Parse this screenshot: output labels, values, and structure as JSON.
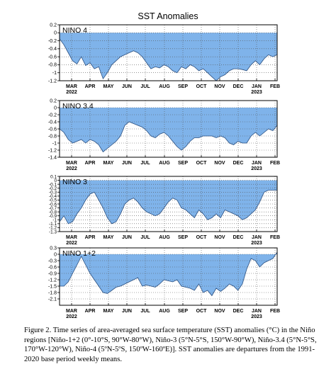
{
  "title": "SST Anomalies",
  "months": [
    "MAR",
    "APR",
    "MAY",
    "JUN",
    "JUL",
    "AUG",
    "SEP",
    "OCT",
    "NOV",
    "DEC",
    "JAN",
    "FEB"
  ],
  "year_labels": [
    {
      "month": "MAR",
      "text": "2022"
    },
    {
      "month": "JAN",
      "text": "2023"
    }
  ],
  "caption": "Figure 2. Time series of area-averaged sea surface temperature (SST) anomalies (°C) in the Niño regions [Niño-1+2 (0°-10°S, 90°W-80°W), Niño-3 (5°N-5°S, 150°W-90°W), Niño-3.4 (5°N-5°S, 170°W-120°W), Niño-4 (5ºN-5ºS, 150ºW-160ºE)]. SST anomalies are departures from the 1991-2020 base period weekly means.",
  "colors": {
    "fill": "#7fb3ea",
    "line": "#000000",
    "grid": "#555555"
  },
  "chart_data": [
    {
      "type": "area",
      "title": "NINO 4",
      "ylim": [
        -1.2,
        0.2
      ],
      "yticks": [
        0.2,
        0,
        -0.2,
        -0.4,
        -0.6,
        -0.8,
        -1,
        -1.2
      ],
      "ytick_labels": [
        "0.2",
        "0",
        "-0.2",
        "-0.4",
        "-0.6",
        "-0.8",
        "-1",
        "-1.2"
      ],
      "xlim": [
        0,
        50
      ],
      "grid": true,
      "values": [
        -0.15,
        -0.3,
        -0.5,
        -0.7,
        -0.78,
        -0.6,
        -0.82,
        -0.75,
        -0.9,
        -0.85,
        -1.15,
        -1.0,
        -0.8,
        -0.7,
        -0.6,
        -0.55,
        -0.5,
        -0.45,
        -0.5,
        -0.6,
        -0.75,
        -0.9,
        -0.85,
        -0.88,
        -0.8,
        -0.85,
        -0.95,
        -1.0,
        -0.85,
        -0.9,
        -0.8,
        -0.85,
        -0.95,
        -0.9,
        -1.0,
        -1.1,
        -1.2,
        -1.1,
        -1.05,
        -0.95,
        -0.9,
        -0.9,
        -0.92,
        -0.95,
        -0.8,
        -0.7,
        -0.8,
        -0.65,
        -0.55,
        -0.6,
        -0.55
      ]
    },
    {
      "type": "area",
      "title": "NINO 3.4",
      "ylim": [
        -1.4,
        0.2
      ],
      "yticks": [
        0.2,
        0,
        -0.2,
        -0.4,
        -0.6,
        -0.8,
        -1,
        -1.2,
        -1.4
      ],
      "ytick_labels": [
        "0.2",
        "0",
        "-0.2",
        "-0.4",
        "-0.6",
        "-0.8",
        "-1",
        "-1.2",
        "-1.4"
      ],
      "xlim": [
        0,
        50
      ],
      "grid": true,
      "values": [
        -0.6,
        -0.7,
        -0.9,
        -1.0,
        -0.95,
        -0.9,
        -1.0,
        -0.9,
        -0.95,
        -1.05,
        -1.25,
        -1.15,
        -1.05,
        -0.95,
        -0.8,
        -0.5,
        -0.4,
        -0.45,
        -0.5,
        -0.55,
        -0.65,
        -0.8,
        -0.85,
        -0.75,
        -0.7,
        -0.8,
        -0.95,
        -1.1,
        -1.2,
        -1.1,
        -0.95,
        -0.85,
        -0.85,
        -0.8,
        -0.8,
        -0.8,
        -0.85,
        -0.8,
        -0.85,
        -1.0,
        -1.05,
        -0.95,
        -1.0,
        -1.0,
        -0.8,
        -0.7,
        -0.8,
        -0.7,
        -0.6,
        -0.65,
        -0.5
      ]
    },
    {
      "type": "area",
      "title": "NINO 3",
      "ylim": [
        -1.3,
        0.1
      ],
      "yticks": [
        0.1,
        0,
        -0.1,
        -0.2,
        -0.3,
        -0.4,
        -0.5,
        -0.6,
        -0.7,
        -0.8,
        -0.9,
        -1,
        -1.1,
        -1.2,
        -1.3
      ],
      "ytick_labels": [
        "0.1",
        "0",
        "-0.1",
        "-0.2",
        "-0.3",
        "-0.4",
        "-0.5",
        "-0.6",
        "-0.7",
        "-0.8",
        "-0.9",
        "-1",
        "-1.1",
        "-1.2",
        "-1.3"
      ],
      "xlim": [
        0,
        50
      ],
      "grid": true,
      "values": [
        -1.05,
        -0.9,
        -1.1,
        -1.05,
        -0.85,
        -0.7,
        -0.5,
        -0.35,
        -0.3,
        -0.5,
        -0.7,
        -0.95,
        -1.1,
        -1.05,
        -0.85,
        -0.6,
        -0.5,
        -0.45,
        -0.55,
        -0.7,
        -0.8,
        -0.85,
        -0.9,
        -0.85,
        -0.7,
        -0.55,
        -0.45,
        -0.5,
        -0.7,
        -0.75,
        -0.85,
        -0.95,
        -0.75,
        -0.85,
        -1.0,
        -0.95,
        -0.85,
        -0.95,
        -0.75,
        -0.8,
        -0.85,
        -0.9,
        -1.0,
        -0.95,
        -0.85,
        -0.75,
        -0.55,
        -0.3,
        -0.25,
        -0.25,
        -0.25
      ]
    },
    {
      "type": "area",
      "title": "NINO 1+2",
      "ylim": [
        -2.4,
        0.3
      ],
      "yticks": [
        0.3,
        0,
        -0.3,
        -0.6,
        -0.9,
        -1.2,
        -1.5,
        -1.8,
        -2.1
      ],
      "ytick_labels": [
        "0.3",
        "0",
        "-0.3",
        "-0.6",
        "-0.9",
        "-1.2",
        "-1.5",
        "-1.8",
        "-2.1"
      ],
      "xlim": [
        0,
        50
      ],
      "grid": true,
      "values": [
        -1.5,
        -1.5,
        -1.3,
        -0.9,
        -0.5,
        -0.1,
        -0.5,
        -0.9,
        -1.2,
        -1.5,
        -1.8,
        -1.85,
        -1.7,
        -1.55,
        -1.5,
        -1.4,
        -1.3,
        -1.2,
        -1.1,
        -1.5,
        -1.45,
        -1.5,
        -1.55,
        -1.4,
        -1.2,
        -1.25,
        -1.3,
        -1.2,
        -1.5,
        -1.55,
        -1.6,
        -1.7,
        -1.4,
        -1.8,
        -1.7,
        -1.95,
        -1.6,
        -1.75,
        -1.6,
        -1.4,
        -1.5,
        -1.7,
        -1.4,
        -0.7,
        -0.2,
        -0.3,
        -0.6,
        -0.4,
        -0.3,
        -0.2,
        0.1
      ]
    }
  ]
}
